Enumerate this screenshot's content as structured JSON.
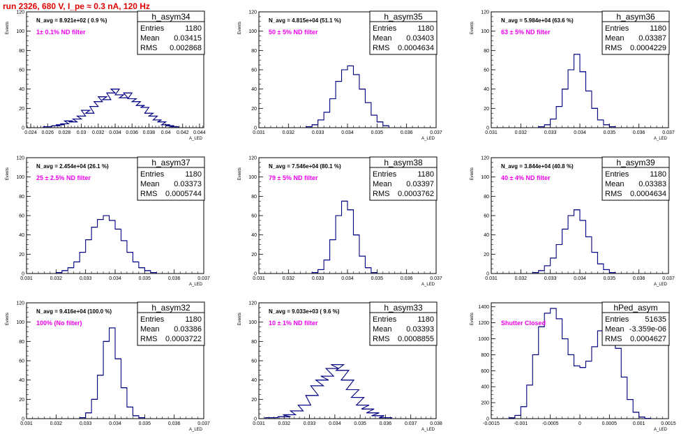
{
  "run_title": "run 2326,   680 V, I_pe ≈ 0.3 nA, 120 Hz",
  "chart_data": [
    {
      "type": "histogram",
      "name": "h_asym34",
      "navg_text": "N_avg = 8.921e+02 ( 0.9 %)",
      "filter_text": "1± 0.1% ND filter",
      "ylabel": "Events",
      "xlabel": "A_LED",
      "xlim": [
        0.0235,
        0.0445
      ],
      "ylim": [
        0,
        120
      ],
      "xticks": [
        "0.024",
        "0.026",
        "0.028",
        "0.03",
        "0.032",
        "0.034",
        "0.036",
        "0.038",
        "0.04",
        "0.042",
        "0.044"
      ],
      "yticks": [
        "0",
        "20",
        "40",
        "60",
        "80",
        "100",
        "120"
      ],
      "stats": {
        "entries": "1180",
        "mean": "0.03415",
        "rms": "0.002868"
      },
      "values": [
        [
          0.026,
          1
        ],
        [
          0.027,
          2
        ],
        [
          0.0275,
          3
        ],
        [
          0.028,
          4
        ],
        [
          0.0285,
          7
        ],
        [
          0.029,
          6
        ],
        [
          0.0295,
          9
        ],
        [
          0.03,
          12
        ],
        [
          0.0305,
          18
        ],
        [
          0.031,
          15
        ],
        [
          0.0315,
          22
        ],
        [
          0.032,
          27
        ],
        [
          0.0325,
          32
        ],
        [
          0.033,
          29
        ],
        [
          0.0335,
          36
        ],
        [
          0.034,
          40
        ],
        [
          0.0345,
          34
        ],
        [
          0.035,
          31
        ],
        [
          0.0355,
          36
        ],
        [
          0.036,
          30
        ],
        [
          0.0365,
          27
        ],
        [
          0.037,
          23
        ],
        [
          0.0375,
          21
        ],
        [
          0.038,
          15
        ],
        [
          0.0385,
          12
        ],
        [
          0.039,
          8
        ],
        [
          0.0395,
          6
        ],
        [
          0.04,
          3
        ],
        [
          0.0405,
          2
        ],
        [
          0.041,
          1
        ]
      ]
    },
    {
      "type": "histogram",
      "name": "h_asym35",
      "navg_text": "N_avg = 4.815e+04 (51.1 %)",
      "filter_text": "50 ± 5% ND filter",
      "ylabel": "Events",
      "xlabel": "A_LED",
      "xlim": [
        0.031,
        0.037
      ],
      "ylim": [
        0,
        120
      ],
      "xticks": [
        "0.031",
        "0.032",
        "0.033",
        "0.034",
        "0.035",
        "0.036",
        "0.037"
      ],
      "yticks": [
        "0",
        "20",
        "40",
        "60",
        "80",
        "100",
        "120"
      ],
      "stats": {
        "entries": "1180",
        "mean": "0.03403",
        "rms": "0.0004634"
      },
      "values": [
        [
          0.0327,
          1
        ],
        [
          0.0329,
          3
        ],
        [
          0.0331,
          8
        ],
        [
          0.0333,
          16
        ],
        [
          0.0335,
          30
        ],
        [
          0.0337,
          48
        ],
        [
          0.0339,
          60
        ],
        [
          0.0341,
          64
        ],
        [
          0.0343,
          55
        ],
        [
          0.0345,
          40
        ],
        [
          0.0347,
          26
        ],
        [
          0.0349,
          13
        ],
        [
          0.0351,
          6
        ],
        [
          0.0353,
          2
        ]
      ]
    },
    {
      "type": "histogram",
      "name": "h_asym36",
      "navg_text": "N_avg = 5.984e+04 (63.6 %)",
      "filter_text": "63 ± 5% ND filter",
      "ylabel": "Events",
      "xlabel": "A_LED",
      "xlim": [
        0.031,
        0.037
      ],
      "ylim": [
        0,
        120
      ],
      "xticks": [
        "0.031",
        "0.032",
        "0.033",
        "0.034",
        "0.035",
        "0.036",
        "0.037"
      ],
      "yticks": [
        "0",
        "20",
        "40",
        "60",
        "80",
        "100",
        "120"
      ],
      "stats": {
        "entries": "1180",
        "mean": "0.03387",
        "rms": "0.0004229"
      },
      "values": [
        [
          0.0327,
          1
        ],
        [
          0.0329,
          3
        ],
        [
          0.0331,
          9
        ],
        [
          0.0333,
          22
        ],
        [
          0.0335,
          40
        ],
        [
          0.0337,
          60
        ],
        [
          0.0339,
          76
        ],
        [
          0.0341,
          58
        ],
        [
          0.0343,
          38
        ],
        [
          0.0345,
          20
        ],
        [
          0.0347,
          8
        ],
        [
          0.0349,
          3
        ],
        [
          0.0351,
          1
        ]
      ]
    },
    {
      "type": "histogram",
      "name": "h_asym37",
      "navg_text": "N_avg = 2.454e+04 (26.1 %)",
      "filter_text": "25 ± 2.5% ND filter",
      "ylabel": "Events",
      "xlabel": "A_LED",
      "xlim": [
        0.031,
        0.037
      ],
      "ylim": [
        0,
        120
      ],
      "xticks": [
        "0.031",
        "0.032",
        "0.033",
        "0.034",
        "0.035",
        "0.036",
        "0.037"
      ],
      "yticks": [
        "0",
        "20",
        "40",
        "60",
        "80",
        "100",
        "120"
      ],
      "stats": {
        "entries": "1180",
        "mean": "0.03373",
        "rms": "0.0005744"
      },
      "values": [
        [
          0.0321,
          1
        ],
        [
          0.0323,
          3
        ],
        [
          0.0325,
          6
        ],
        [
          0.0327,
          12
        ],
        [
          0.0329,
          22
        ],
        [
          0.0331,
          35
        ],
        [
          0.0333,
          48
        ],
        [
          0.0335,
          56
        ],
        [
          0.0337,
          60
        ],
        [
          0.0339,
          55
        ],
        [
          0.0341,
          46
        ],
        [
          0.0343,
          34
        ],
        [
          0.0345,
          22
        ],
        [
          0.0347,
          12
        ],
        [
          0.0349,
          6
        ],
        [
          0.0351,
          3
        ],
        [
          0.0353,
          1
        ]
      ]
    },
    {
      "type": "histogram",
      "name": "h_asym38",
      "navg_text": "N_avg = 7.546e+04 (80.1 %)",
      "filter_text": "79 ± 5% ND filter",
      "ylabel": "Events",
      "xlabel": "A_LED",
      "xlim": [
        0.031,
        0.037
      ],
      "ylim": [
        0,
        120
      ],
      "xticks": [
        "0.031",
        "0.032",
        "0.033",
        "0.034",
        "0.035",
        "0.036",
        "0.037"
      ],
      "yticks": [
        "0",
        "20",
        "40",
        "60",
        "80",
        "100",
        "120"
      ],
      "stats": {
        "entries": "1180",
        "mean": "0.03397",
        "rms": "0.0003762"
      },
      "values": [
        [
          0.0329,
          1
        ],
        [
          0.0331,
          4
        ],
        [
          0.0333,
          14
        ],
        [
          0.0335,
          35
        ],
        [
          0.0337,
          60
        ],
        [
          0.0339,
          75
        ],
        [
          0.0341,
          66
        ],
        [
          0.0343,
          40
        ],
        [
          0.0345,
          18
        ],
        [
          0.0347,
          6
        ],
        [
          0.0349,
          1
        ]
      ]
    },
    {
      "type": "histogram",
      "name": "h_asym39",
      "navg_text": "N_avg = 3.844e+04 (40.8 %)",
      "filter_text": "40 ± 4% ND filter",
      "ylabel": "Events",
      "xlabel": "A_LED",
      "xlim": [
        0.031,
        0.037
      ],
      "ylim": [
        0,
        120
      ],
      "xticks": [
        "0.031",
        "0.032",
        "0.033",
        "0.034",
        "0.035",
        "0.036",
        "0.037"
      ],
      "yticks": [
        "0",
        "20",
        "40",
        "60",
        "80",
        "100",
        "120"
      ],
      "stats": {
        "entries": "1180",
        "mean": "0.03383",
        "rms": "0.0004634"
      },
      "values": [
        [
          0.0325,
          1
        ],
        [
          0.0327,
          3
        ],
        [
          0.0329,
          8
        ],
        [
          0.0331,
          16
        ],
        [
          0.0333,
          30
        ],
        [
          0.0335,
          46
        ],
        [
          0.0337,
          60
        ],
        [
          0.0339,
          66
        ],
        [
          0.0341,
          55
        ],
        [
          0.0343,
          38
        ],
        [
          0.0345,
          22
        ],
        [
          0.0347,
          10
        ],
        [
          0.0349,
          4
        ],
        [
          0.0351,
          1
        ]
      ]
    },
    {
      "type": "histogram",
      "name": "h_asym32",
      "navg_text": "N_avg = 9.416e+04 (100.0 %)",
      "filter_text": "100% (No filter)",
      "ylabel": "Events",
      "xlabel": "A_LED",
      "xlim": [
        0.031,
        0.037
      ],
      "ylim": [
        0,
        120
      ],
      "xticks": [
        "0.031",
        "0.032",
        "0.033",
        "0.034",
        "0.035",
        "0.036",
        "0.037"
      ],
      "yticks": [
        "0",
        "20",
        "40",
        "60",
        "80",
        "100",
        "120"
      ],
      "stats": {
        "entries": "1180",
        "mean": "0.03386",
        "rms": "0.0003722"
      },
      "values": [
        [
          0.0329,
          1
        ],
        [
          0.0331,
          6
        ],
        [
          0.0333,
          20
        ],
        [
          0.0335,
          45
        ],
        [
          0.0337,
          80
        ],
        [
          0.0339,
          94
        ],
        [
          0.0341,
          62
        ],
        [
          0.0343,
          32
        ],
        [
          0.0345,
          12
        ],
        [
          0.0347,
          3
        ],
        [
          0.0349,
          1
        ]
      ]
    },
    {
      "type": "histogram",
      "name": "h_asym33",
      "navg_text": "N_avg = 9.033e+03 ( 9.6 %)",
      "filter_text": "10 ± 1% ND filter",
      "ylabel": "Events",
      "xlabel": "A_LED",
      "xlim": [
        0.031,
        0.038
      ],
      "ylim": [
        0,
        120
      ],
      "xticks": [
        "0.031",
        "0.032",
        "0.033",
        "0.034",
        "0.035",
        "0.036",
        "0.037",
        "0.038"
      ],
      "yticks": [
        "0",
        "20",
        "40",
        "60",
        "80",
        "100",
        "120"
      ],
      "stats": {
        "entries": "1180",
        "mean": "0.03393",
        "rms": "0.0008855"
      },
      "values": [
        [
          0.0315,
          1
        ],
        [
          0.032,
          2
        ],
        [
          0.0322,
          4
        ],
        [
          0.0325,
          8
        ],
        [
          0.0328,
          14
        ],
        [
          0.0331,
          24
        ],
        [
          0.0333,
          34
        ],
        [
          0.0335,
          40
        ],
        [
          0.0337,
          44
        ],
        [
          0.0339,
          52
        ],
        [
          0.0341,
          56
        ],
        [
          0.0343,
          50
        ],
        [
          0.0345,
          40
        ],
        [
          0.0347,
          30
        ],
        [
          0.0349,
          22
        ],
        [
          0.0351,
          14
        ],
        [
          0.0353,
          10
        ],
        [
          0.0355,
          6
        ],
        [
          0.0357,
          3
        ],
        [
          0.036,
          1
        ]
      ]
    },
    {
      "type": "histogram",
      "name": "hPed_asym",
      "navg_text": "",
      "filter_text": "Shutter Closed",
      "ylabel": "Events",
      "xlabel": "A_LED",
      "xlim": [
        -0.0015,
        0.0015
      ],
      "ylim": [
        0,
        1450
      ],
      "xticks": [
        "-0.0015",
        "-0.001",
        "-0.0005",
        "0",
        "0.0005",
        "0.001",
        "0.0015"
      ],
      "yticks": [
        "0",
        "200",
        "400",
        "600",
        "800",
        "1000",
        "1200",
        "1400"
      ],
      "stats": {
        "entries": "51635",
        "mean": "-3.359e-06",
        "rms": "0.0004627"
      },
      "values": [
        [
          -0.00115,
          10
        ],
        [
          -0.00105,
          40
        ],
        [
          -0.00095,
          150
        ],
        [
          -0.00085,
          420
        ],
        [
          -0.00075,
          800
        ],
        [
          -0.00065,
          1150
        ],
        [
          -0.00055,
          1320
        ],
        [
          -0.00045,
          1380
        ],
        [
          -0.00035,
          1250
        ],
        [
          -0.00025,
          1000
        ],
        [
          -0.00015,
          800
        ],
        [
          -5e-05,
          660
        ],
        [
          5e-05,
          640
        ],
        [
          0.00015,
          720
        ],
        [
          0.00025,
          900
        ],
        [
          0.00035,
          1100
        ],
        [
          0.00045,
          1260
        ],
        [
          0.00055,
          1150
        ],
        [
          0.00065,
          880
        ],
        [
          0.00075,
          520
        ],
        [
          0.00085,
          240
        ],
        [
          0.00095,
          80
        ],
        [
          0.00105,
          20
        ],
        [
          0.00115,
          4
        ]
      ]
    }
  ]
}
